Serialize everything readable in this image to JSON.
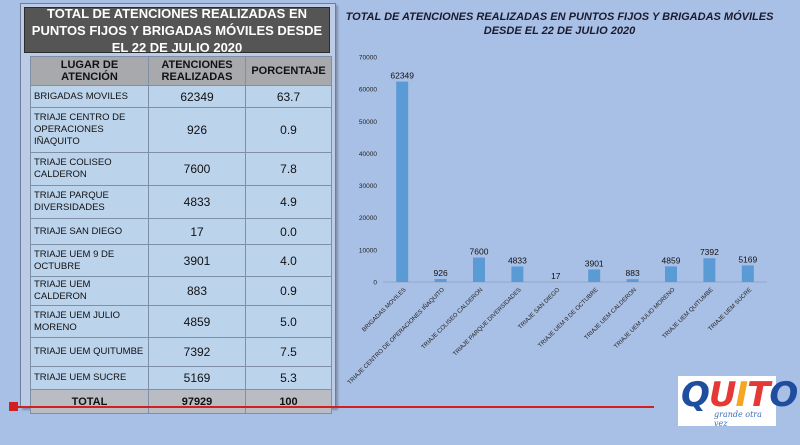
{
  "table": {
    "title": "TOTAL DE ATENCIONES REALIZADAS EN PUNTOS FIJOS Y BRIGADAS MÓVILES DESDE EL 22 DE JULIO 2020",
    "headers": [
      "LUGAR DE ATENCIÓN",
      "ATENCIONES REALIZADAS",
      "PORCENTAJE"
    ],
    "rows": [
      [
        "BRIGADAS MOVILES",
        "62349",
        "63.7"
      ],
      [
        "TRIAJE CENTRO DE OPERACIONES IÑAQUITO",
        "926",
        "0.9"
      ],
      [
        "TRIAJE COLISEO CALDERON",
        "7600",
        "7.8"
      ],
      [
        "TRIAJE PARQUE DIVERSIDADES",
        "4833",
        "4.9"
      ],
      [
        "TRIAJE SAN DIEGO",
        "17",
        "0.0"
      ],
      [
        "TRIAJE UEM 9 DE OCTUBRE",
        "3901",
        "4.0"
      ],
      [
        "TRIAJE UEM CALDERON",
        "883",
        "0.9"
      ],
      [
        "TRIAJE UEM JULIO MORENO",
        "4859",
        "5.0"
      ],
      [
        "TRIAJE UEM QUITUMBE",
        "7392",
        "7.5"
      ],
      [
        "TRIAJE UEM SUCRE",
        "5169",
        "5.3"
      ]
    ],
    "total": [
      "TOTAL",
      "97929",
      "100"
    ]
  },
  "chart_data": {
    "type": "bar",
    "title": "TOTAL DE ATENCIONES REALIZADAS EN PUNTOS FIJOS Y BRIGADAS MÓVILES DESDE EL 22 DE JULIO 2020",
    "categories": [
      "BRIGADAS MOVILES",
      "TRIAJE CENTRO DE OPERACIONES IÑAQUITO",
      "TRIAJE COLISEO CALDERON",
      "TRIAJE PARQUE DIVERSIDADES",
      "TRIAJE SAN DIEGO",
      "TRIAJE UEM 9 DE OCTUBRE",
      "TRIAJE UEM CALDERON",
      "TRIAJE UEM JULIO MORENO",
      "TRIAJE UEM QUITUMBE",
      "TRIAJE UEM SUCRE"
    ],
    "values": [
      62349,
      926,
      7600,
      4833,
      17,
      3901,
      883,
      4859,
      7392,
      5169
    ],
    "ylim": [
      0,
      70000
    ],
    "yticks": [
      0,
      10000,
      20000,
      30000,
      40000,
      50000,
      60000,
      70000
    ],
    "grid": false,
    "legend": "none",
    "bar_color": "#5b9bd5"
  },
  "logo": {
    "letters": [
      "Q",
      "U",
      "I",
      "T",
      "O"
    ],
    "colors": [
      "#1f4e9e",
      "#e53935",
      "#f5a623",
      "#e53935",
      "#1f4e9e"
    ],
    "tagline": "grande otra vez"
  },
  "colors": {
    "accent_line": "#d21f1f",
    "background": "#a9c0e6"
  }
}
